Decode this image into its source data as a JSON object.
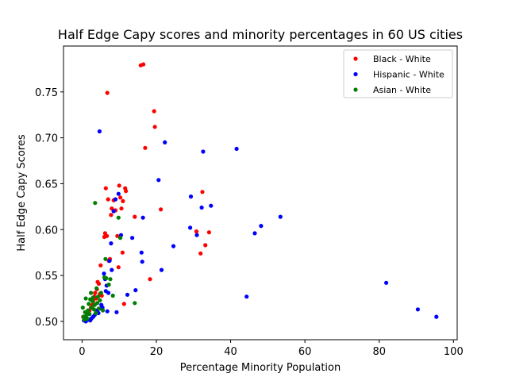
{
  "chart_data": {
    "type": "scatter",
    "title": "Half Edge Capy scores and minority percentages in 60 US cities",
    "xlabel": "Percentage Minority Population",
    "ylabel": "Half Edge Capy Scores",
    "xlim": [
      -5,
      101
    ],
    "ylim": [
      0.48,
      0.8
    ],
    "xticks": [
      0,
      20,
      40,
      60,
      80,
      100
    ],
    "xtick_labels": [
      "0",
      "20",
      "40",
      "60",
      "80",
      "100"
    ],
    "yticks": [
      0.5,
      0.55,
      0.6,
      0.65,
      0.7,
      0.75
    ],
    "ytick_labels": [
      "0.50",
      "0.55",
      "0.60",
      "0.65",
      "0.70",
      "0.75"
    ],
    "grid": false,
    "legend_position": "top-right",
    "series": [
      {
        "name": "Black - White",
        "color": "#ff0000",
        "points": [
          [
            0.3,
            0.505
          ],
          [
            0.6,
            0.501
          ],
          [
            1.0,
            0.503
          ],
          [
            1.5,
            0.508
          ],
          [
            2.0,
            0.512
          ],
          [
            2.4,
            0.515
          ],
          [
            2.8,
            0.518
          ],
          [
            3.0,
            0.522
          ],
          [
            3.3,
            0.527
          ],
          [
            3.5,
            0.531
          ],
          [
            3.8,
            0.525
          ],
          [
            4.0,
            0.535
          ],
          [
            4.2,
            0.543
          ],
          [
            4.5,
            0.541
          ],
          [
            4.8,
            0.53
          ],
          [
            5.0,
            0.561
          ],
          [
            5.3,
            0.528
          ],
          [
            6.0,
            0.592
          ],
          [
            6.2,
            0.596
          ],
          [
            6.4,
            0.645
          ],
          [
            6.7,
            0.593
          ],
          [
            6.8,
            0.749
          ],
          [
            7.0,
            0.633
          ],
          [
            7.2,
            0.566
          ],
          [
            7.5,
            0.568
          ],
          [
            7.8,
            0.616
          ],
          [
            8.0,
            0.623
          ],
          [
            8.5,
            0.632
          ],
          [
            9.0,
            0.621
          ],
          [
            9.5,
            0.593
          ],
          [
            9.8,
            0.559
          ],
          [
            10.0,
            0.648
          ],
          [
            10.3,
            0.635
          ],
          [
            10.6,
            0.623
          ],
          [
            10.9,
            0.575
          ],
          [
            11.0,
            0.631
          ],
          [
            11.3,
            0.519
          ],
          [
            11.6,
            0.645
          ],
          [
            11.8,
            0.642
          ],
          [
            14.2,
            0.614
          ],
          [
            15.8,
            0.779
          ],
          [
            16.5,
            0.78
          ],
          [
            17.0,
            0.689
          ],
          [
            18.3,
            0.546
          ],
          [
            19.4,
            0.729
          ],
          [
            19.6,
            0.712
          ],
          [
            21.2,
            0.622
          ],
          [
            30.8,
            0.598
          ],
          [
            31.9,
            0.574
          ],
          [
            32.4,
            0.641
          ],
          [
            33.2,
            0.583
          ],
          [
            34.2,
            0.597
          ]
        ]
      },
      {
        "name": "Hispanic - White",
        "color": "#0000ff",
        "points": [
          [
            0.5,
            0.501
          ],
          [
            1.0,
            0.5
          ],
          [
            1.3,
            0.503
          ],
          [
            1.7,
            0.502
          ],
          [
            2.2,
            0.501
          ],
          [
            2.5,
            0.503
          ],
          [
            3.0,
            0.505
          ],
          [
            3.4,
            0.507
          ],
          [
            3.8,
            0.51
          ],
          [
            4.1,
            0.512
          ],
          [
            4.4,
            0.509
          ],
          [
            4.7,
            0.707
          ],
          [
            5.0,
            0.514
          ],
          [
            5.2,
            0.518
          ],
          [
            5.5,
            0.515
          ],
          [
            5.9,
            0.552
          ],
          [
            6.2,
            0.546
          ],
          [
            6.4,
            0.533
          ],
          [
            6.6,
            0.539
          ],
          [
            6.8,
            0.511
          ],
          [
            7.1,
            0.531
          ],
          [
            7.4,
            0.566
          ],
          [
            7.8,
            0.585
          ],
          [
            8.0,
            0.556
          ],
          [
            8.5,
            0.62
          ],
          [
            9.0,
            0.633
          ],
          [
            9.3,
            0.51
          ],
          [
            9.8,
            0.639
          ],
          [
            10.5,
            0.594
          ],
          [
            12.2,
            0.529
          ],
          [
            13.5,
            0.591
          ],
          [
            14.4,
            0.534
          ],
          [
            16.0,
            0.575
          ],
          [
            16.2,
            0.565
          ],
          [
            16.4,
            0.613
          ],
          [
            20.6,
            0.654
          ],
          [
            21.4,
            0.556
          ],
          [
            22.3,
            0.695
          ],
          [
            24.6,
            0.582
          ],
          [
            29.1,
            0.602
          ],
          [
            29.3,
            0.636
          ],
          [
            30.9,
            0.594
          ],
          [
            32.2,
            0.624
          ],
          [
            32.6,
            0.685
          ],
          [
            34.7,
            0.626
          ],
          [
            41.6,
            0.688
          ],
          [
            44.3,
            0.527
          ],
          [
            46.5,
            0.596
          ],
          [
            48.2,
            0.604
          ],
          [
            53.4,
            0.614
          ],
          [
            81.9,
            0.542
          ],
          [
            90.4,
            0.513
          ],
          [
            95.4,
            0.505
          ]
        ]
      },
      {
        "name": "Asian - White",
        "color": "#008000",
        "points": [
          [
            0.2,
            0.515
          ],
          [
            0.4,
            0.505
          ],
          [
            0.6,
            0.502
          ],
          [
            0.8,
            0.51
          ],
          [
            1.0,
            0.525
          ],
          [
            1.2,
            0.507
          ],
          [
            1.4,
            0.503
          ],
          [
            1.6,
            0.512
          ],
          [
            1.8,
            0.519
          ],
          [
            2.0,
            0.508
          ],
          [
            2.2,
            0.524
          ],
          [
            2.4,
            0.531
          ],
          [
            2.6,
            0.515
          ],
          [
            2.8,
            0.522
          ],
          [
            3.0,
            0.526
          ],
          [
            3.2,
            0.513
          ],
          [
            3.4,
            0.518
          ],
          [
            3.5,
            0.629
          ],
          [
            3.7,
            0.509
          ],
          [
            3.9,
            0.536
          ],
          [
            4.1,
            0.52
          ],
          [
            4.3,
            0.527
          ],
          [
            4.5,
            0.514
          ],
          [
            4.8,
            0.523
          ],
          [
            5.1,
            0.531
          ],
          [
            5.6,
            0.512
          ],
          [
            6.0,
            0.548
          ],
          [
            6.3,
            0.568
          ],
          [
            6.5,
            0.547
          ],
          [
            7.2,
            0.54
          ],
          [
            7.6,
            0.546
          ],
          [
            8.3,
            0.528
          ],
          [
            9.8,
            0.613
          ],
          [
            10.3,
            0.591
          ],
          [
            14.2,
            0.52
          ]
        ]
      }
    ]
  }
}
